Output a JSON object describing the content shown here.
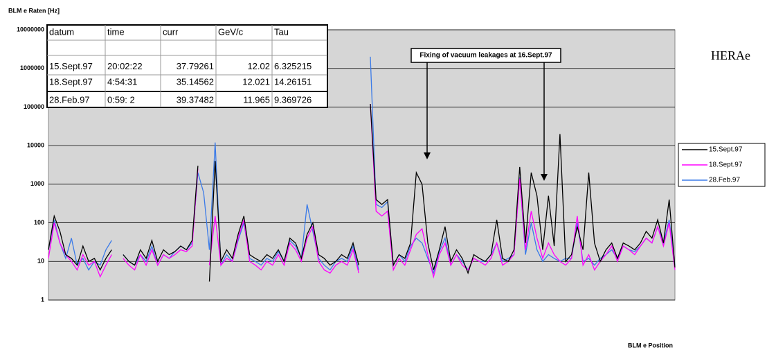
{
  "chart_data": {
    "type": "line",
    "title": "BLM e Raten [Hz]",
    "x_label": "BLM e Position",
    "side_label": "HERAe",
    "annotation": "Fixing of vacuum leakages at 16.Sept.97",
    "log_scale": true,
    "grid": true,
    "legend": "right",
    "ylim": [
      1,
      10000000
    ],
    "yticks": [
      1,
      10,
      100,
      1000,
      10000,
      100000,
      1000000,
      10000000
    ],
    "series": [
      {
        "name": "15.Sept.97",
        "color": "#000000",
        "values": [
          20,
          150,
          60,
          15,
          12,
          8,
          25,
          10,
          12,
          6,
          12,
          20,
          null,
          15,
          10,
          8,
          20,
          12,
          35,
          10,
          20,
          15,
          18,
          25,
          20,
          35,
          3000,
          null,
          3,
          4000,
          10,
          20,
          12,
          50,
          150,
          15,
          12,
          10,
          15,
          12,
          20,
          10,
          40,
          30,
          12,
          50,
          100,
          15,
          12,
          8,
          10,
          15,
          12,
          30,
          8,
          null,
          120000,
          400,
          300,
          400,
          8,
          15,
          12,
          30,
          2000,
          1000,
          30,
          6,
          20,
          80,
          10,
          20,
          12,
          5,
          15,
          12,
          10,
          15,
          120,
          12,
          10,
          20,
          2800,
          30,
          2000,
          500,
          20,
          500,
          25,
          20000,
          10,
          15,
          80,
          20,
          2000,
          30,
          10,
          20,
          30,
          12,
          30,
          25,
          20,
          30,
          60,
          40,
          120,
          30,
          400,
          7
        ]
      },
      {
        "name": "18.Sept.97",
        "color": "#ff00ff",
        "values": [
          12,
          100,
          30,
          15,
          10,
          6,
          15,
          8,
          10,
          4,
          8,
          15,
          null,
          12,
          8,
          6,
          15,
          8,
          20,
          8,
          15,
          12,
          15,
          20,
          18,
          25,
          2500,
          null,
          8,
          150,
          8,
          12,
          10,
          40,
          120,
          10,
          8,
          6,
          10,
          8,
          15,
          8,
          30,
          20,
          10,
          40,
          80,
          10,
          6,
          5,
          8,
          10,
          8,
          20,
          5,
          null,
          120000,
          200,
          150,
          200,
          6,
          12,
          8,
          20,
          50,
          70,
          15,
          4,
          15,
          30,
          8,
          15,
          8,
          6,
          12,
          10,
          8,
          12,
          30,
          8,
          10,
          15,
          1400,
          20,
          200,
          40,
          12,
          30,
          15,
          10,
          8,
          12,
          150,
          8,
          15,
          6,
          10,
          15,
          25,
          10,
          25,
          20,
          15,
          25,
          40,
          30,
          80,
          25,
          100,
          6
        ]
      },
      {
        "name": "28.Feb.97",
        "color": "#3a7ae8",
        "values": [
          20,
          120,
          30,
          12,
          40,
          8,
          12,
          6,
          10,
          8,
          20,
          35,
          null,
          15,
          10,
          8,
          15,
          10,
          25,
          8,
          15,
          12,
          18,
          25,
          20,
          30,
          2000,
          600,
          20,
          12000,
          8,
          15,
          10,
          35,
          100,
          12,
          10,
          8,
          12,
          10,
          18,
          10,
          35,
          25,
          12,
          300,
          60,
          12,
          8,
          6,
          10,
          12,
          10,
          25,
          6,
          null,
          2000000,
          300,
          250,
          350,
          8,
          15,
          10,
          25,
          40,
          30,
          12,
          5,
          18,
          40,
          8,
          15,
          10,
          6,
          12,
          10,
          10,
          15,
          30,
          10,
          12,
          15,
          1500,
          15,
          100,
          20,
          10,
          15,
          12,
          10,
          12,
          12,
          100,
          10,
          12,
          8,
          12,
          15,
          20,
          12,
          25,
          20,
          18,
          25,
          40,
          30,
          80,
          30,
          120,
          8
        ]
      }
    ]
  },
  "table": {
    "header": [
      "datum",
      "time",
      "curr",
      "GeV/c",
      "Tau"
    ],
    "rows": [
      [
        "15.Sept.97",
        "20:02:22",
        "37.79261",
        "12.02",
        "6.325215"
      ],
      [
        "18.Sept.97",
        "4:54:31",
        "35.14562",
        "12.021",
        "14.26151"
      ],
      [
        "28.Feb.97",
        "0:59: 2",
        "39.37482",
        "11.965",
        "9.369726"
      ]
    ]
  }
}
